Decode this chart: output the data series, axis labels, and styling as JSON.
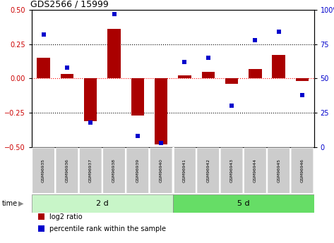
{
  "title": "GDS2566 / 15999",
  "samples": [
    "GSM96935",
    "GSM96936",
    "GSM96937",
    "GSM96938",
    "GSM96939",
    "GSM96940",
    "GSM96941",
    "GSM96942",
    "GSM96943",
    "GSM96944",
    "GSM96945",
    "GSM96946"
  ],
  "log2_ratio": [
    0.15,
    0.03,
    -0.31,
    0.36,
    -0.27,
    -0.48,
    0.02,
    0.05,
    -0.04,
    0.07,
    0.17,
    -0.02
  ],
  "percentile_rank": [
    82,
    58,
    18,
    97,
    8,
    3,
    62,
    65,
    30,
    78,
    84,
    38
  ],
  "bar_color": "#aa0000",
  "dot_color": "#0000cc",
  "bar_width": 0.55,
  "ylim_left": [
    -0.5,
    0.5
  ],
  "ylim_right": [
    0,
    100
  ],
  "yticks_left": [
    -0.5,
    -0.25,
    0.0,
    0.25,
    0.5
  ],
  "yticks_right": [
    0,
    25,
    50,
    75,
    100
  ],
  "ytick_labels_right": [
    "0",
    "25",
    "50",
    "75",
    "100%"
  ],
  "group1_label": "2 d",
  "group2_label": "5 d",
  "group1_color": "#c8f5c8",
  "group2_color": "#66dd66",
  "legend_label1": "log2 ratio",
  "legend_label2": "percentile rank within the sample",
  "tick_color_left": "#cc0000",
  "tick_color_right": "#0000cc",
  "background_color": "#ffffff"
}
